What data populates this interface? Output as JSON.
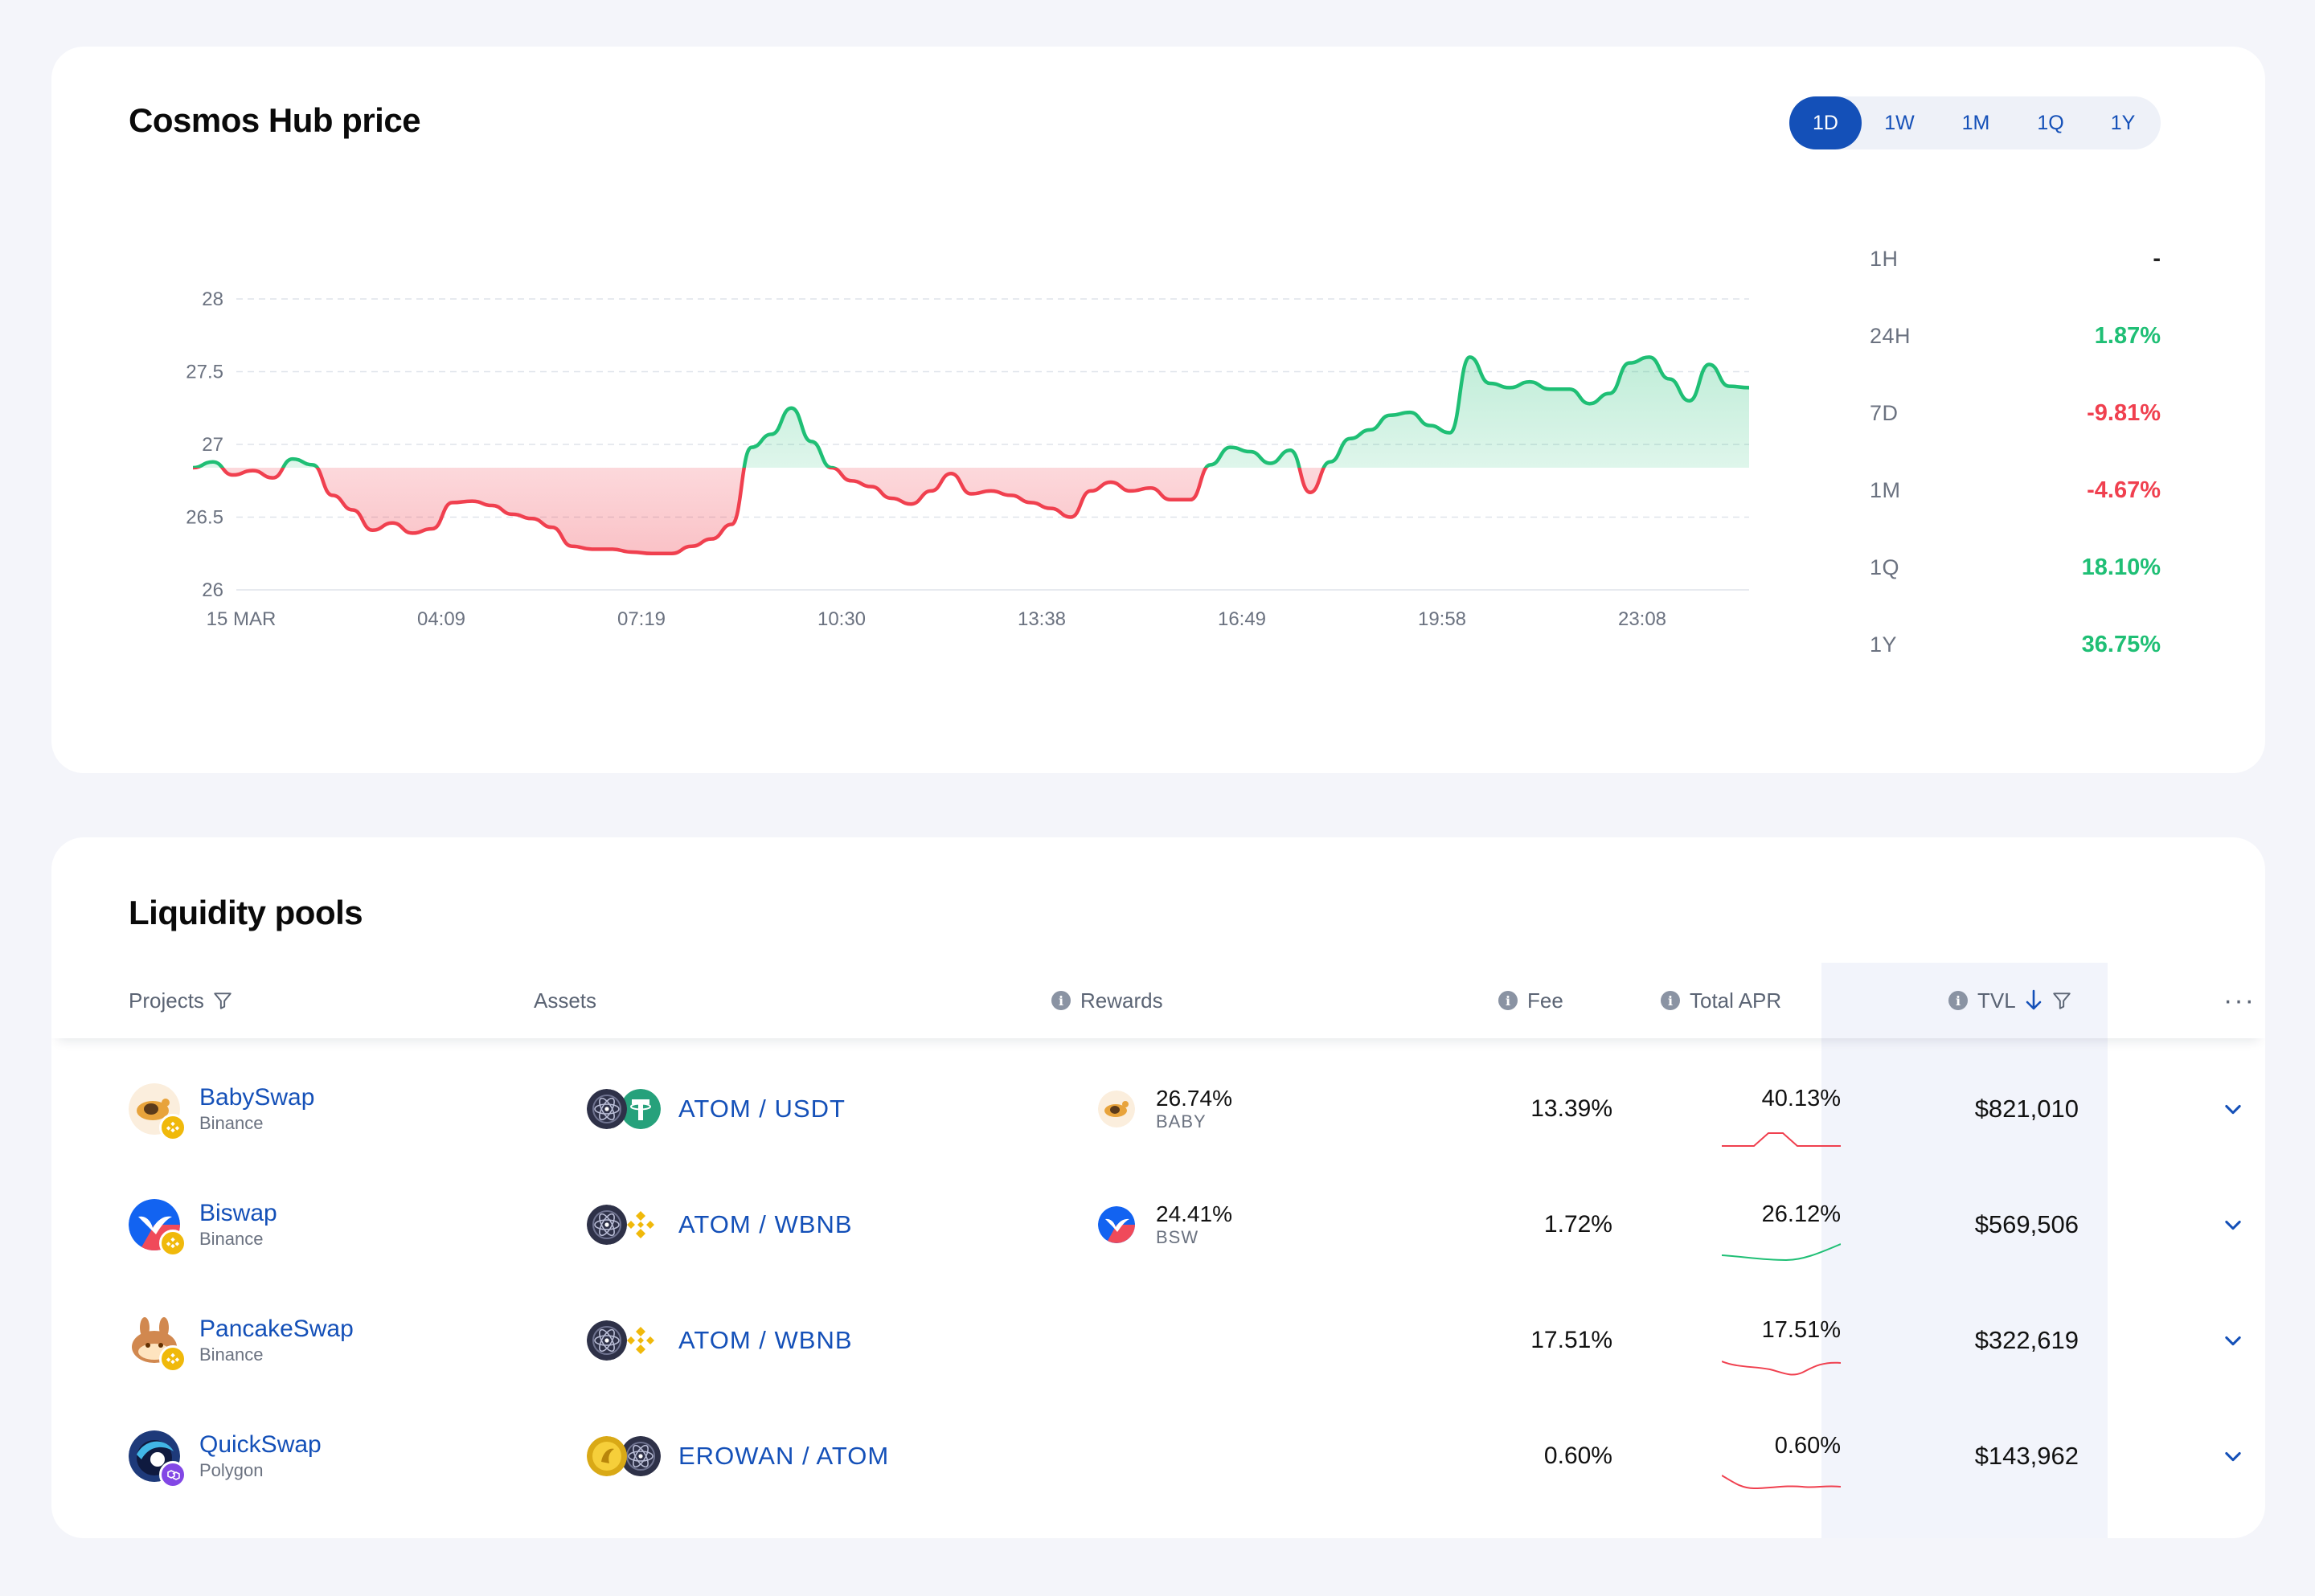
{
  "price_card": {
    "title": "Cosmos Hub price",
    "ranges": [
      "1D",
      "1W",
      "1M",
      "1Q",
      "1Y"
    ],
    "active_range": "1D",
    "changes": [
      {
        "label": "1H",
        "value": "-",
        "trend": "neutral"
      },
      {
        "label": "24H",
        "value": "1.87%",
        "trend": "up"
      },
      {
        "label": "7D",
        "value": "-9.81%",
        "trend": "down"
      },
      {
        "label": "1M",
        "value": "-4.67%",
        "trend": "down"
      },
      {
        "label": "1Q",
        "value": "18.10%",
        "trend": "up"
      },
      {
        "label": "1Y",
        "value": "36.75%",
        "trend": "up"
      }
    ],
    "colors": {
      "up": "#1fbf75",
      "down": "#f0404f",
      "neutral": "#222222",
      "accent": "#1450b8"
    }
  },
  "chart_data": {
    "type": "area",
    "title": "Cosmos Hub price",
    "xlabel": "",
    "ylabel": "",
    "ylim": [
      26,
      28
    ],
    "yticks": [
      "28",
      "27.5",
      "27",
      "26.5",
      "26"
    ],
    "xticks": [
      "15 MAR",
      "04:09",
      "07:19",
      "10:30",
      "13:38",
      "16:49",
      "19:58",
      "23:08"
    ],
    "baseline": 26.84,
    "grid": true,
    "x": [
      0,
      0.1,
      0.2,
      0.3,
      0.4,
      0.5,
      0.6,
      0.7,
      0.8,
      0.9,
      1,
      1.1,
      1.2,
      1.3,
      1.4,
      1.5,
      1.6,
      1.7,
      1.8,
      1.9,
      2,
      2.1,
      2.2,
      2.3,
      2.4,
      2.5,
      2.6,
      2.7,
      2.8,
      2.9,
      3,
      3.1,
      3.2,
      3.3,
      3.4,
      3.5,
      3.6,
      3.7,
      3.8,
      3.9,
      4,
      4.1,
      4.2,
      4.3,
      4.4,
      4.5,
      4.6,
      4.7,
      4.8,
      4.9,
      5,
      5.1,
      5.2,
      5.3,
      5.4,
      5.5,
      5.6,
      5.7,
      5.8,
      5.9,
      6,
      6.1,
      6.2,
      6.3,
      6.4,
      6.5,
      6.6,
      6.7,
      6.8,
      6.9,
      7,
      7.1,
      7.2,
      7.3,
      7.4,
      7.5,
      7.6,
      7.7,
      7.8
    ],
    "values": [
      26.84,
      26.88,
      26.79,
      26.82,
      26.77,
      26.9,
      26.86,
      26.65,
      26.55,
      26.41,
      26.46,
      26.39,
      26.42,
      26.6,
      26.61,
      26.58,
      26.52,
      26.49,
      26.43,
      26.3,
      26.28,
      26.28,
      26.26,
      26.25,
      26.25,
      26.3,
      26.35,
      26.45,
      26.98,
      27.07,
      27.25,
      27.02,
      26.84,
      26.75,
      26.71,
      26.63,
      26.59,
      26.68,
      26.8,
      26.66,
      26.68,
      26.65,
      26.6,
      26.56,
      26.5,
      26.68,
      26.74,
      26.68,
      26.7,
      26.62,
      26.62,
      26.86,
      26.98,
      26.95,
      26.87,
      26.96,
      26.67,
      26.88,
      27.04,
      27.1,
      27.2,
      27.22,
      27.13,
      27.08,
      27.6,
      27.42,
      27.39,
      27.43,
      27.38,
      27.38,
      27.28,
      27.35,
      27.56,
      27.6,
      27.45,
      27.3,
      27.55,
      27.4,
      27.39
    ]
  },
  "pools_card": {
    "title": "Liquidity pools",
    "headers": {
      "projects": "Projects",
      "assets": "Assets",
      "rewards": "Rewards",
      "fee": "Fee",
      "total_apr": "Total APR",
      "tvl": "TVL"
    },
    "rows": [
      {
        "project": "BabySwap",
        "chain": "Binance",
        "pair": "ATOM / USDT",
        "reward_pct": "26.74%",
        "reward_token": "BABY",
        "fee": "13.39%",
        "apr": "40.13%",
        "tvl": "$821,010",
        "apr_trend": "down"
      },
      {
        "project": "Biswap",
        "chain": "Binance",
        "pair": "ATOM / WBNB",
        "reward_pct": "24.41%",
        "reward_token": "BSW",
        "fee": "1.72%",
        "apr": "26.12%",
        "tvl": "$569,506",
        "apr_trend": "up"
      },
      {
        "project": "PancakeSwap",
        "chain": "Binance",
        "pair": "ATOM / WBNB",
        "reward_pct": "",
        "reward_token": "",
        "fee": "17.51%",
        "apr": "17.51%",
        "tvl": "$322,619",
        "apr_trend": "down"
      },
      {
        "project": "QuickSwap",
        "chain": "Polygon",
        "pair": "EROWAN / ATOM",
        "reward_pct": "",
        "reward_token": "",
        "fee": "0.60%",
        "apr": "0.60%",
        "tvl": "$143,962",
        "apr_trend": "down"
      }
    ]
  }
}
